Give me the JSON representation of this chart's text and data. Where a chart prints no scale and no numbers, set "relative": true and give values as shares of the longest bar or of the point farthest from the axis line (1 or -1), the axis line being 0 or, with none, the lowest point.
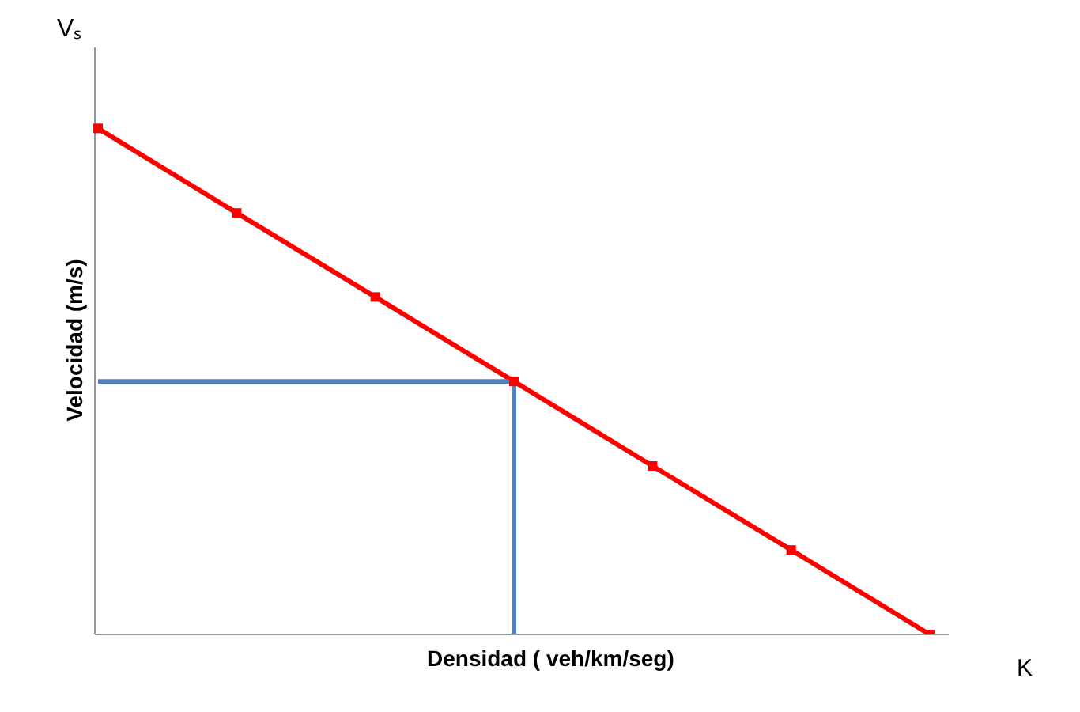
{
  "chart_data": {
    "type": "line",
    "relative": true,
    "xlabel": "Densidad ( veh/km/seg)",
    "ylabel": "Velocidad (m/s)",
    "annotations": [
      "Vₛ",
      "K"
    ],
    "categories": [
      null,
      null,
      null,
      null,
      null,
      null,
      null
    ],
    "marker": "square",
    "grid": false,
    "series": [
      {
        "color": "#ff0000",
        "values": [
          1,
          0.833,
          0.667,
          0.5,
          0.333,
          0.167,
          0
        ]
      },
      {
        "color": "#4f81bd",
        "marker": "none",
        "values": [
          0.5,
          0.5,
          0.5,
          0.5,
          null,
          null,
          null
        ]
      }
    ]
  }
}
